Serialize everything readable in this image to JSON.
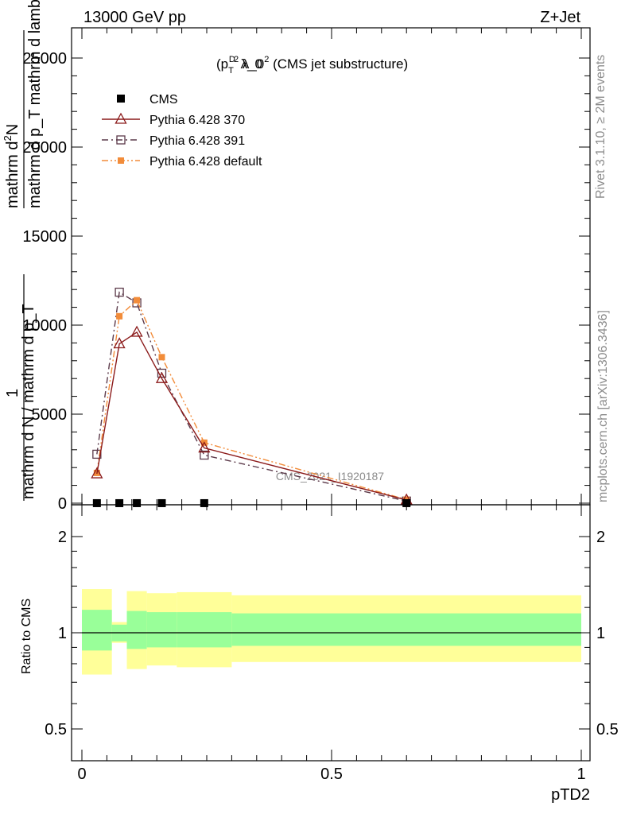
{
  "header": {
    "left": "13000 GeV pp",
    "right": "Z+Jet"
  },
  "side_labels": {
    "rivet": "Rivet 3.1.10, ≥ 2M events",
    "mcplots": "mcplots.cern.ch [arXiv:1306.3436]"
  },
  "watermark": "CMS_2021_I1920187",
  "main_title": {
    "p": "(p",
    "sub": "T",
    "sup": "D",
    "sq": "2",
    "rest": " λ_0",
    "sq2": "2",
    "tail": " (CMS jet substructure)"
  },
  "ylabel_main": {
    "numerator_top": "mathrm d",
    "numerator_sup": "2",
    "numerator_N": "N",
    "denominator": "mathrm d p_T mathrm d lambda",
    "one": "1",
    "norm_den": "mathrm d N / mathrm d p_T"
  },
  "legend": [
    {
      "name": "CMS",
      "color": "#000000",
      "marker": "filled-square",
      "dash": "none"
    },
    {
      "name": "Pythia 6.428 370",
      "color": "#8b1a1a",
      "marker": "open-triangle",
      "dash": "solid"
    },
    {
      "name": "Pythia 6.428 391",
      "color": "#5c3a4a",
      "marker": "open-square",
      "dash": "dashdot"
    },
    {
      "name": "Pythia 6.428 default",
      "color": "#f28c3a",
      "marker": "filled-square",
      "dash": "dashdotdot"
    }
  ],
  "chart_data": [
    {
      "type": "line",
      "panel": "main",
      "xlabel": "pTD2",
      "ylabel": "1/N dN/dp_T (mathrm d^2N / mathrm d p_T mathrm d lambda)",
      "xlim": [
        0,
        1
      ],
      "ylim": [
        0,
        25000
      ],
      "yticks": [
        0,
        5000,
        10000,
        15000,
        20000,
        25000
      ],
      "ytick_labels": [
        "0",
        "5000",
        "10000",
        "15000",
        "20000",
        "25000"
      ],
      "x": [
        0.03,
        0.075,
        0.11,
        0.16,
        0.245,
        0.65
      ],
      "series": [
        {
          "name": "CMS",
          "values": [
            2,
            2,
            2,
            2,
            2,
            2
          ]
        },
        {
          "name": "Pythia 6.428 370",
          "values": [
            1650,
            8950,
            9600,
            7000,
            3100,
            180
          ]
        },
        {
          "name": "Pythia 6.428 391",
          "values": [
            2750,
            11850,
            11250,
            7300,
            2700,
            120
          ]
        },
        {
          "name": "Pythia 6.428 default",
          "values": [
            1700,
            10500,
            11400,
            8200,
            3400,
            200
          ]
        }
      ]
    },
    {
      "type": "area",
      "panel": "ratio",
      "ylabel": "Ratio to CMS",
      "xlabel": "pTD2",
      "xlim": [
        0,
        1
      ],
      "ylim": [
        0.4,
        2.2
      ],
      "yticks": [
        0.5,
        1,
        2
      ],
      "ytick_labels": [
        "0.5",
        "1",
        "2"
      ],
      "xticks": [
        0,
        0.5,
        1
      ],
      "xtick_labels": [
        "0",
        "0.5",
        "1"
      ],
      "bands": [
        {
          "x0": 0.0,
          "x1": 0.06,
          "stat_lo": 0.88,
          "stat_hi": 1.18,
          "tot_lo": 0.74,
          "tot_hi": 1.37
        },
        {
          "x0": 0.06,
          "x1": 0.09,
          "stat_lo": 0.94,
          "stat_hi": 1.06,
          "tot_lo": 0.93,
          "tot_hi": 1.08
        },
        {
          "x0": 0.09,
          "x1": 0.13,
          "stat_lo": 0.89,
          "stat_hi": 1.17,
          "tot_lo": 0.77,
          "tot_hi": 1.35
        },
        {
          "x0": 0.13,
          "x1": 0.19,
          "stat_lo": 0.9,
          "stat_hi": 1.16,
          "tot_lo": 0.79,
          "tot_hi": 1.33
        },
        {
          "x0": 0.19,
          "x1": 0.3,
          "stat_lo": 0.9,
          "stat_hi": 1.16,
          "tot_lo": 0.78,
          "tot_hi": 1.34
        },
        {
          "x0": 0.3,
          "x1": 1.0,
          "stat_lo": 0.91,
          "stat_hi": 1.15,
          "tot_lo": 0.81,
          "tot_hi": 1.31
        }
      ],
      "reference_line": 1
    }
  ]
}
